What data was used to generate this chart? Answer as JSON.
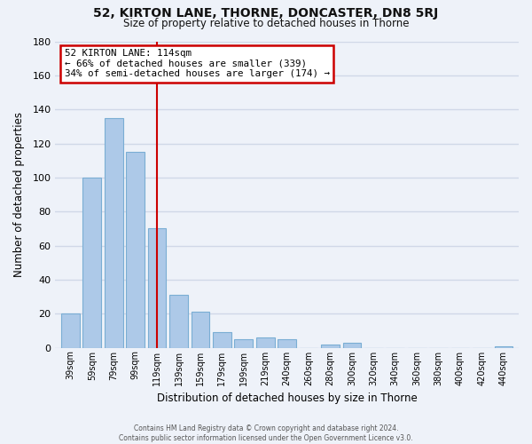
{
  "title": "52, KIRTON LANE, THORNE, DONCASTER, DN8 5RJ",
  "subtitle": "Size of property relative to detached houses in Thorne",
  "xlabel": "Distribution of detached houses by size in Thorne",
  "ylabel": "Number of detached properties",
  "bar_labels": [
    "39sqm",
    "59sqm",
    "79sqm",
    "99sqm",
    "119sqm",
    "139sqm",
    "159sqm",
    "179sqm",
    "199sqm",
    "219sqm",
    "240sqm",
    "260sqm",
    "280sqm",
    "300sqm",
    "320sqm",
    "340sqm",
    "360sqm",
    "380sqm",
    "400sqm",
    "420sqm",
    "440sqm"
  ],
  "bar_values": [
    20,
    100,
    135,
    115,
    70,
    31,
    21,
    9,
    5,
    6,
    5,
    0,
    2,
    3,
    0,
    0,
    0,
    0,
    0,
    0,
    1
  ],
  "bar_color": "#adc9e8",
  "bar_edge_color": "#7aaed4",
  "vline_index": 4,
  "annotation_line1": "52 KIRTON LANE: 114sqm",
  "annotation_line2": "← 66% of detached houses are smaller (339)",
  "annotation_line3": "34% of semi-detached houses are larger (174) →",
  "annotation_box_color": "#ffffff",
  "annotation_box_edge_color": "#cc0000",
  "vline_color": "#cc0000",
  "ylim": [
    0,
    180
  ],
  "yticks": [
    0,
    20,
    40,
    60,
    80,
    100,
    120,
    140,
    160,
    180
  ],
  "footer_line1": "Contains HM Land Registry data © Crown copyright and database right 2024.",
  "footer_line2": "Contains public sector information licensed under the Open Government Licence v3.0.",
  "background_color": "#eef2f9",
  "plot_bg_color": "#eef2f9",
  "grid_color": "#d0d8e8"
}
